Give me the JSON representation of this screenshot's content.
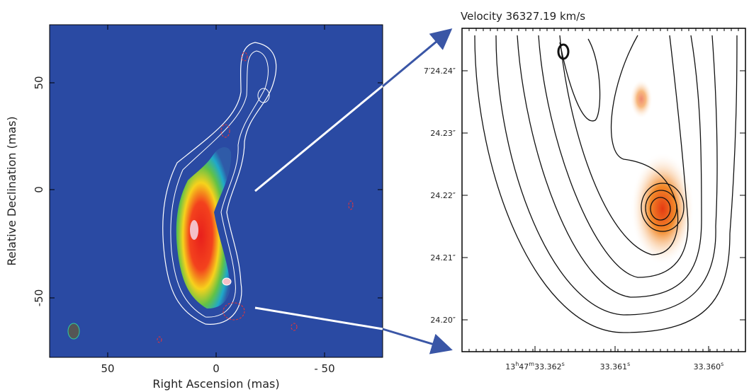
{
  "left_panel": {
    "x_label": "Right Ascension  (mas)",
    "y_label": "Relative Declination (mas)",
    "x_tick_labels": [
      "50",
      "0",
      "- 50"
    ],
    "y_tick_labels": [
      "50",
      "0",
      "-50"
    ]
  },
  "right_panel": {
    "title": "Velocity 36327.19 km/s",
    "y_tick_labels": [
      "7′24.24″",
      "24.23″",
      "24.22″",
      "24.21″",
      "24.20″"
    ],
    "x_tick_labels": [
      [
        "13",
        "h",
        "47",
        "m",
        "33.362",
        "s"
      ],
      [
        "33.361",
        "s"
      ],
      [
        "33.360",
        "s"
      ]
    ]
  }
}
